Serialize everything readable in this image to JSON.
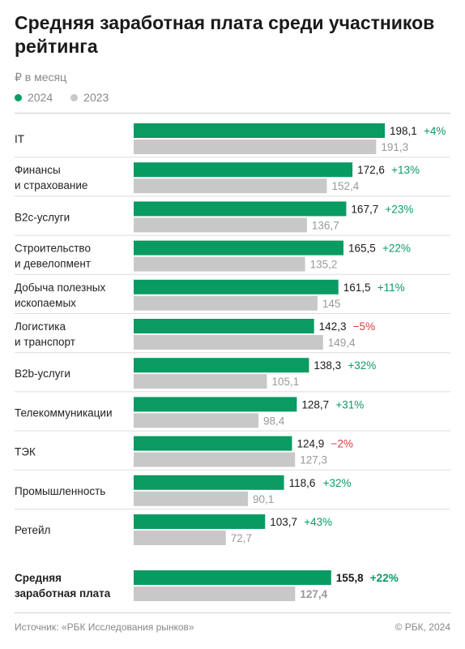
{
  "title": "Средняя заработная плата среди участников рейтинга",
  "unit_label": "₽ в месяц",
  "legend": [
    {
      "label": "2024",
      "color": "#0a9b62"
    },
    {
      "label": "2023",
      "color": "#c8c8c8"
    }
  ],
  "source": "Источник: «РБК Исследования рынков»",
  "copyright": "© РБК, 2024",
  "colors": {
    "current": "#0a9b62",
    "previous": "#c8c8c8",
    "positive": "#0a9b62",
    "negative": "#d93a3a",
    "prev_text": "#999999",
    "divider": "#dddddd"
  },
  "chart_data": {
    "type": "bar",
    "orientation": "horizontal",
    "categories": [
      [
        "IT"
      ],
      [
        "Финансы",
        "и страхование"
      ],
      [
        "B2c-услуги"
      ],
      [
        "Строительство",
        "и девелопмент"
      ],
      [
        "Добыча полезных",
        "ископаемых"
      ],
      [
        "Логистика",
        "и транспорт"
      ],
      [
        "B2b-услуги"
      ],
      [
        "Телекоммуникации"
      ],
      [
        "ТЭК"
      ],
      [
        "Промышленность"
      ],
      [
        "Ретейл"
      ],
      [
        "Средняя",
        "заработная плата"
      ]
    ],
    "series": [
      {
        "name": "2024",
        "values": [
          198.1,
          172.6,
          167.7,
          165.5,
          161.5,
          142.3,
          138.3,
          128.7,
          124.9,
          118.6,
          103.7,
          155.8
        ],
        "labels": [
          "198,1",
          "172,6",
          "167,7",
          "165,5",
          "161,5",
          "142,3",
          "138,3",
          "128,7",
          "124,9",
          "118,6",
          "103,7",
          "155,8"
        ]
      },
      {
        "name": "2023",
        "values": [
          191.3,
          152.4,
          136.7,
          135.2,
          145,
          149.4,
          105.1,
          98.4,
          127.3,
          90.1,
          72.7,
          127.4
        ],
        "labels": [
          "191,3",
          "152,4",
          "136,7",
          "135,2",
          "145",
          "149,4",
          "105,1",
          "98,4",
          "127,3",
          "90,1",
          "72,7",
          "127,4"
        ]
      }
    ],
    "changes": [
      "+4%",
      "+13%",
      "+23%",
      "+22%",
      "+11%",
      "−5%",
      "+32%",
      "+31%",
      "−2%",
      "+32%",
      "+43%",
      "+22%"
    ],
    "highlight_last": true,
    "xlim": [
      0,
      198.1
    ]
  }
}
